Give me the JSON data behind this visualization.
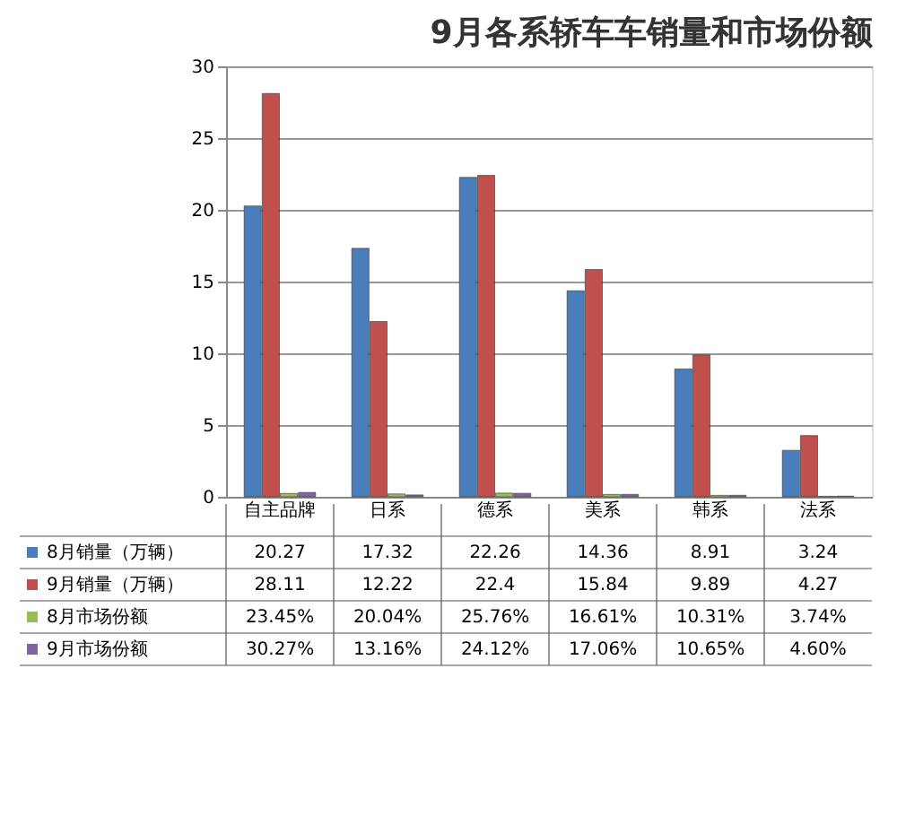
{
  "chart_data": {
    "type": "bar",
    "title": "9月各系轿车车销量和市场份额",
    "categories": [
      "自主品牌",
      "日系",
      "德系",
      "美系",
      "韩系",
      "法系"
    ],
    "ylim": [
      0,
      30
    ],
    "yticks": [
      0,
      5,
      10,
      15,
      20,
      25,
      30
    ],
    "grid": "y",
    "legend": "bottom",
    "series": [
      {
        "name": "8月销量（万辆）",
        "color": "#4a7ebb",
        "values": [
          20.27,
          17.32,
          22.26,
          14.36,
          8.91,
          3.24
        ],
        "value_labels": [
          "20.27",
          "17.32",
          "22.26",
          "14.36",
          "8.91",
          "3.24"
        ]
      },
      {
        "name": "9月销量（万辆）",
        "color": "#c0504d",
        "values": [
          28.11,
          12.22,
          22.4,
          15.84,
          9.89,
          4.27
        ],
        "value_labels": [
          "28.11",
          "12.22",
          "22.4",
          "15.84",
          "9.89",
          "4.27"
        ]
      },
      {
        "name": "8月市场份额",
        "color": "#9bbb59",
        "values": [
          0.2345,
          0.2004,
          0.2576,
          0.1661,
          0.1031,
          0.0374
        ],
        "value_labels": [
          "23.45%",
          "20.04%",
          "25.76%",
          "16.61%",
          "10.31%",
          "3.74%"
        ]
      },
      {
        "name": "9月市场份额",
        "color": "#8064a2",
        "values": [
          0.3027,
          0.1316,
          0.2412,
          0.1706,
          0.1065,
          0.046
        ],
        "value_labels": [
          "30.27%",
          "13.16%",
          "24.12%",
          "17.06%",
          "10.65%",
          "4.60%"
        ]
      }
    ]
  }
}
